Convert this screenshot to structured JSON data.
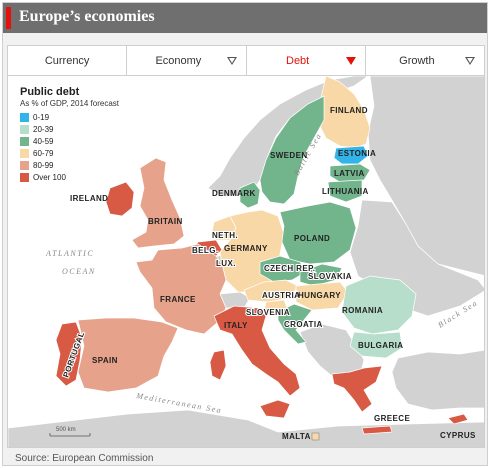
{
  "header": {
    "title": "Europe’s economies",
    "accent_color": "#e3120b"
  },
  "tabs": [
    {
      "label": "Currency",
      "active": false,
      "has_dropdown": false
    },
    {
      "label": "Economy",
      "active": false,
      "has_dropdown": true
    },
    {
      "label": "Debt",
      "active": true,
      "has_dropdown": true
    },
    {
      "label": "Growth",
      "active": false,
      "has_dropdown": true
    }
  ],
  "legend": {
    "title": "Public debt",
    "subtitle": "As % of GDP, 2014 forecast",
    "items": [
      {
        "label": "0-19",
        "color": "#33b4e8"
      },
      {
        "label": "20-39",
        "color": "#b6decb"
      },
      {
        "label": "40-59",
        "color": "#72b48c"
      },
      {
        "label": "60-79",
        "color": "#f8d8a6"
      },
      {
        "label": "80-99",
        "color": "#e6a28a"
      },
      {
        "label": "Over 100",
        "color": "#d85a45"
      }
    ]
  },
  "countries": [
    {
      "name": "FINLAND",
      "bucket": "60-79"
    },
    {
      "name": "SWEDEN",
      "bucket": "40-59"
    },
    {
      "name": "ESTONIA",
      "bucket": "0-19"
    },
    {
      "name": "LATVIA",
      "bucket": "40-59"
    },
    {
      "name": "LITHUANIA",
      "bucket": "40-59"
    },
    {
      "name": "DENMARK",
      "bucket": "40-59"
    },
    {
      "name": "IRELAND",
      "bucket": "Over 100"
    },
    {
      "name": "BRITAIN",
      "bucket": "80-99"
    },
    {
      "name": "NETH.",
      "bucket": "60-79"
    },
    {
      "name": "BELG.",
      "bucket": "Over 100"
    },
    {
      "name": "LUX.",
      "bucket": "20-39"
    },
    {
      "name": "GERMANY",
      "bucket": "60-79"
    },
    {
      "name": "POLAND",
      "bucket": "40-59"
    },
    {
      "name": "CZECH REP.",
      "bucket": "40-59"
    },
    {
      "name": "SLOVAKIA",
      "bucket": "40-59"
    },
    {
      "name": "AUSTRIA",
      "bucket": "60-79"
    },
    {
      "name": "HUNGARY",
      "bucket": "60-79"
    },
    {
      "name": "SLOVENIA",
      "bucket": "60-79"
    },
    {
      "name": "CROATIA",
      "bucket": "40-59"
    },
    {
      "name": "ROMANIA",
      "bucket": "20-39"
    },
    {
      "name": "BULGARIA",
      "bucket": "20-39"
    },
    {
      "name": "FRANCE",
      "bucket": "80-99"
    },
    {
      "name": "SPAIN",
      "bucket": "80-99"
    },
    {
      "name": "PORTUGAL",
      "bucket": "Over 100"
    },
    {
      "name": "ITALY",
      "bucket": "Over 100"
    },
    {
      "name": "GREECE",
      "bucket": "Over 100"
    },
    {
      "name": "MALTA",
      "bucket": "60-79"
    },
    {
      "name": "CYPRUS",
      "bucket": "Over 100"
    }
  ],
  "seas": {
    "atlantic_1": "ATLANTIC",
    "atlantic_2": "OCEAN",
    "baltic": "Baltic Sea",
    "mediterranean": "Mediterranean Sea",
    "black": "Black Sea"
  },
  "scale_bar": "500 km",
  "source": "Source: European Commission"
}
